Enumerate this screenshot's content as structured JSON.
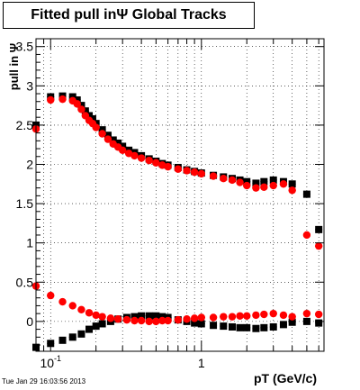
{
  "chart_data": {
    "type": "scatter",
    "title": "Fitted pull inΨ   Global Tracks",
    "xlabel": "pT (GeV/c)",
    "ylabel": "pull in Ψ",
    "xscale": "log",
    "xlim": [
      0.08,
      6.5
    ],
    "ylim": [
      -0.38,
      3.6
    ],
    "grid": true,
    "x_ticks": [
      {
        "value": 0.1,
        "base": "10",
        "exp": "-1"
      },
      {
        "value": 1,
        "base": "1",
        "exp": ""
      }
    ],
    "y_ticks": [
      {
        "value": 0,
        "label": "0"
      },
      {
        "value": 0.5,
        "label": "0.5"
      },
      {
        "value": 1,
        "label": "1"
      },
      {
        "value": 1.5,
        "label": "1.5"
      },
      {
        "value": 2,
        "label": "2"
      },
      {
        "value": 2.5,
        "label": "2.5"
      },
      {
        "value": 3,
        "label": "3"
      },
      {
        "value": 3.5,
        "label": "3.5"
      }
    ],
    "series": [
      {
        "color": "#000000",
        "marker": "square",
        "x": [
          0.08,
          0.1,
          0.12,
          0.14,
          0.15,
          0.16,
          0.17,
          0.18,
          0.19,
          0.2,
          0.22,
          0.24,
          0.26,
          0.28,
          0.3,
          0.33,
          0.36,
          0.4,
          0.45,
          0.5,
          0.55,
          0.6,
          0.7,
          0.8,
          0.9,
          1.0,
          1.2,
          1.4,
          1.6,
          1.8,
          2.0,
          2.3,
          2.6,
          3.0,
          3.5,
          4.0,
          5.0,
          6.0
        ],
        "y": [
          2.5,
          2.86,
          2.87,
          2.86,
          2.82,
          2.75,
          2.68,
          2.62,
          2.58,
          2.52,
          2.44,
          2.37,
          2.31,
          2.27,
          2.23,
          2.18,
          2.15,
          2.11,
          2.07,
          2.04,
          2.01,
          1.99,
          1.96,
          1.93,
          1.91,
          1.89,
          1.86,
          1.84,
          1.82,
          1.8,
          1.78,
          1.76,
          1.78,
          1.8,
          1.78,
          1.75,
          1.62,
          1.17
        ]
      },
      {
        "color": "#ff0000",
        "marker": "circle",
        "x": [
          0.08,
          0.1,
          0.12,
          0.14,
          0.15,
          0.16,
          0.17,
          0.18,
          0.19,
          0.2,
          0.22,
          0.24,
          0.26,
          0.28,
          0.3,
          0.33,
          0.36,
          0.4,
          0.45,
          0.5,
          0.55,
          0.6,
          0.7,
          0.8,
          0.9,
          1.0,
          1.2,
          1.4,
          1.6,
          1.8,
          2.0,
          2.3,
          2.6,
          3.0,
          3.5,
          4.0,
          5.0,
          6.0
        ],
        "y": [
          2.45,
          2.82,
          2.83,
          2.81,
          2.77,
          2.7,
          2.62,
          2.56,
          2.52,
          2.47,
          2.39,
          2.32,
          2.26,
          2.22,
          2.18,
          2.14,
          2.11,
          2.08,
          2.05,
          2.02,
          1.99,
          1.97,
          1.94,
          1.92,
          1.9,
          1.88,
          1.85,
          1.82,
          1.8,
          1.77,
          1.73,
          1.7,
          1.71,
          1.73,
          1.75,
          1.67,
          1.1,
          0.96
        ]
      },
      {
        "color": "#000000",
        "marker": "square",
        "x": [
          0.08,
          0.1,
          0.12,
          0.14,
          0.16,
          0.18,
          0.2,
          0.22,
          0.25,
          0.28,
          0.32,
          0.36,
          0.4,
          0.45,
          0.5,
          0.55,
          0.6,
          0.7,
          0.8,
          0.9,
          1.0,
          1.2,
          1.4,
          1.6,
          1.8,
          2.0,
          2.3,
          2.6,
          3.0,
          3.5,
          4.0,
          5.0,
          6.0
        ],
        "y": [
          -0.33,
          -0.28,
          -0.24,
          -0.2,
          -0.16,
          -0.1,
          -0.06,
          -0.03,
          0.0,
          0.03,
          0.05,
          0.06,
          0.07,
          0.07,
          0.07,
          0.06,
          0.05,
          0.02,
          0.0,
          -0.02,
          -0.03,
          -0.05,
          -0.06,
          -0.07,
          -0.08,
          -0.08,
          -0.09,
          -0.08,
          -0.07,
          -0.04,
          -0.01,
          0.0,
          -0.02
        ]
      },
      {
        "color": "#ff0000",
        "marker": "circle",
        "x": [
          0.08,
          0.1,
          0.12,
          0.14,
          0.16,
          0.18,
          0.2,
          0.22,
          0.25,
          0.28,
          0.32,
          0.36,
          0.4,
          0.45,
          0.5,
          0.55,
          0.6,
          0.7,
          0.8,
          0.9,
          1.0,
          1.2,
          1.4,
          1.6,
          1.8,
          2.0,
          2.3,
          2.6,
          3.0,
          3.5,
          4.0,
          5.0,
          6.0
        ],
        "y": [
          0.45,
          0.33,
          0.25,
          0.2,
          0.15,
          0.11,
          0.08,
          0.06,
          0.04,
          0.03,
          0.02,
          0.01,
          0.01,
          0.0,
          0.0,
          0.01,
          0.01,
          0.02,
          0.03,
          0.04,
          0.05,
          0.05,
          0.06,
          0.06,
          0.07,
          0.07,
          0.08,
          0.09,
          0.1,
          0.08,
          0.06,
          0.1,
          0.09
        ]
      }
    ]
  },
  "timestamp": "Tue Jan 29 16:03:56 2013"
}
